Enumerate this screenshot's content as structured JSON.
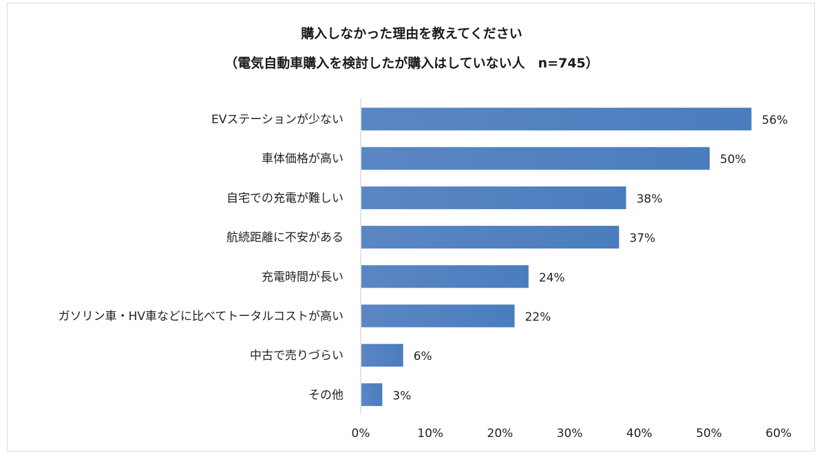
{
  "chart_data": {
    "type": "bar",
    "orientation": "horizontal",
    "title": "購入しなかった理由を教えてください",
    "subtitle": "（電気自動車購入を検討したが購入はしていない人　n=745）",
    "categories": [
      "EVステーションが少ない",
      "車体価格が高い",
      "自宅での充電が難しい",
      "航続距離に不安がある",
      "充電時間が長い",
      "ガソリン車・HV車などに比べてトータルコストが高い",
      "中古で売りづらい",
      "その他"
    ],
    "values": [
      56,
      50,
      38,
      37,
      24,
      22,
      6,
      3
    ],
    "value_labels": [
      "56%",
      "50%",
      "38%",
      "37%",
      "24%",
      "22%",
      "6%",
      "3%"
    ],
    "xlim": [
      0,
      60
    ],
    "ticks": [
      0,
      10,
      20,
      30,
      40,
      50,
      60
    ],
    "tick_labels": [
      "0%",
      "10%",
      "20%",
      "30%",
      "40%",
      "50%",
      "60%"
    ],
    "grid": false,
    "legend": "none",
    "bar_color": "#4f81bd"
  }
}
